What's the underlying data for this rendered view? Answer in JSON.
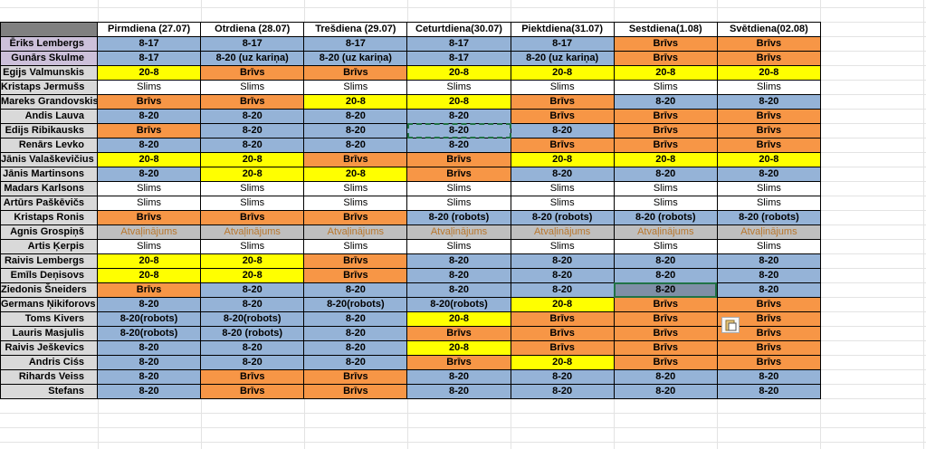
{
  "table": {
    "header": [
      "Pirmdiena (27.07)",
      "Otrdiena (28.07)",
      "Trešdiena (29.07)",
      "Ceturtdiena(30.07)",
      "Piektdiena(31.07)",
      "Sestdiena(1.08)",
      "Svētdiena(02.08)"
    ],
    "rows": [
      {
        "name": "Ēriks Lembergs",
        "name_fill": "#ccc0da",
        "cells": [
          "8-17",
          "8-17",
          "8-17",
          "8-17",
          "8-17",
          "Brīvs",
          "Brīvs"
        ],
        "fills": [
          "#95b3d7",
          "#95b3d7",
          "#95b3d7",
          "#95b3d7",
          "#95b3d7",
          "#f79646",
          "#f79646"
        ]
      },
      {
        "name": "Gunārs Skulme",
        "name_fill": "#ccc0da",
        "cells": [
          "8-17",
          "8-20 (uz kariņa)",
          "8-20 (uz kariņa)",
          "8-17",
          "8-20 (uz kariņa)",
          "Brīvs",
          "Brīvs"
        ],
        "fills": [
          "#95b3d7",
          "#95b3d7",
          "#95b3d7",
          "#95b3d7",
          "#95b3d7",
          "#f79646",
          "#f79646"
        ]
      },
      {
        "name": "Egijs Valmunskis",
        "name_fill": "#d9d9d9",
        "cells": [
          "20-8",
          "Brīvs",
          "Brīvs",
          "20-8",
          "20-8",
          "20-8",
          "20-8"
        ],
        "fills": [
          "#ffff00",
          "#f79646",
          "#f79646",
          "#ffff00",
          "#ffff00",
          "#ffff00",
          "#ffff00"
        ]
      },
      {
        "name": "Kristaps Jermušs",
        "name_fill": "#d9d9d9",
        "cells": [
          "Slims",
          "Slims",
          "Slims",
          "Slims",
          "Slims",
          "Slims",
          "Slims"
        ],
        "fills": [
          "#ffffff",
          "#ffffff",
          "#ffffff",
          "#ffffff",
          "#ffffff",
          "#ffffff",
          "#ffffff"
        ]
      },
      {
        "name": "Mareks Grandovskis",
        "name_fill": "#d9d9d9",
        "cells": [
          "Brīvs",
          "Brīvs",
          "20-8",
          "20-8",
          "Brīvs",
          "8-20",
          "8-20"
        ],
        "fills": [
          "#f79646",
          "#f79646",
          "#ffff00",
          "#ffff00",
          "#f79646",
          "#95b3d7",
          "#95b3d7"
        ]
      },
      {
        "name": "Andis  Lauva",
        "name_fill": "#d9d9d9",
        "cells": [
          "8-20",
          "8-20",
          "8-20",
          "8-20",
          "Brīvs",
          "Brīvs",
          "Brīvs"
        ],
        "fills": [
          "#95b3d7",
          "#95b3d7",
          "#95b3d7",
          "#95b3d7",
          "#f79646",
          "#f79646",
          "#f79646"
        ]
      },
      {
        "name": "Edijs Ribikausks",
        "name_fill": "#d9d9d9",
        "cells": [
          "Brīvs",
          "8-20",
          "8-20",
          "8-20",
          "8-20",
          "Brīvs",
          "Brīvs"
        ],
        "fills": [
          "#f79646",
          "#95b3d7",
          "#95b3d7",
          "#95b3d7",
          "#95b3d7",
          "#f79646",
          "#f79646"
        ]
      },
      {
        "name": "Renārs Levko",
        "name_fill": "#d9d9d9",
        "cells": [
          "8-20",
          "8-20",
          "8-20",
          "8-20",
          "Brīvs",
          "Brīvs",
          "Brīvs"
        ],
        "fills": [
          "#95b3d7",
          "#95b3d7",
          "#95b3d7",
          "#95b3d7",
          "#f79646",
          "#f79646",
          "#f79646"
        ]
      },
      {
        "name": "Jānis Valaškevičius",
        "name_fill": "#d9d9d9",
        "cells": [
          "20-8",
          "20-8",
          "Brīvs",
          "Brīvs",
          "20-8",
          "20-8",
          "20-8"
        ],
        "fills": [
          "#ffff00",
          "#ffff00",
          "#f79646",
          "#f79646",
          "#ffff00",
          "#ffff00",
          "#ffff00"
        ]
      },
      {
        "name": "Jānis Martinsons",
        "name_fill": "#d9d9d9",
        "cells": [
          "8-20",
          "20-8",
          "20-8",
          "Brīvs",
          "8-20",
          "8-20",
          "8-20"
        ],
        "fills": [
          "#95b3d7",
          "#ffff00",
          "#ffff00",
          "#f79646",
          "#95b3d7",
          "#95b3d7",
          "#95b3d7"
        ]
      },
      {
        "name": "Madars Karlsons",
        "name_fill": "#d9d9d9",
        "cells": [
          "Slims",
          "Slims",
          "Slims",
          "Slims",
          "Slims",
          "Slims",
          "Slims"
        ],
        "fills": [
          "#ffffff",
          "#ffffff",
          "#ffffff",
          "#ffffff",
          "#ffffff",
          "#ffffff",
          "#ffffff"
        ]
      },
      {
        "name": "Artūrs Paškēvičs",
        "name_fill": "#d9d9d9",
        "cells": [
          "Slims",
          "Slims",
          "Slims",
          "Slims",
          "Slims",
          "Slims",
          "Slims"
        ],
        "fills": [
          "#ffffff",
          "#ffffff",
          "#ffffff",
          "#ffffff",
          "#ffffff",
          "#ffffff",
          "#ffffff"
        ]
      },
      {
        "name": "Kristaps Ronis",
        "name_fill": "#d9d9d9",
        "cells": [
          "Brīvs",
          "Brīvs",
          "Brīvs",
          "8-20 (robots)",
          "8-20 (robots)",
          "8-20 (robots)",
          "8-20 (robots)"
        ],
        "fills": [
          "#f79646",
          "#f79646",
          "#f79646",
          "#95b3d7",
          "#95b3d7",
          "#95b3d7",
          "#95b3d7"
        ]
      },
      {
        "name": "Agnis Grospiņš",
        "name_fill": "#d9d9d9",
        "cells": [
          "Atvaļinājums",
          "Atvaļinājums",
          "Atvaļinājums",
          "Atvaļinājums",
          "Atvaļinājums",
          "Atvaļinājums",
          "Atvaļinājums"
        ],
        "fills": [
          "#bfbfbf",
          "#bfbfbf",
          "#bfbfbf",
          "#bfbfbf",
          "#bfbfbf",
          "#bfbfbf",
          "#bfbfbf"
        ]
      },
      {
        "name": "Artis Ķerpis",
        "name_fill": "#d9d9d9",
        "cells": [
          "Slims",
          "Slims",
          "Slims",
          "Slims",
          "Slims",
          "Slims",
          "Slims"
        ],
        "fills": [
          "#ffffff",
          "#ffffff",
          "#ffffff",
          "#ffffff",
          "#ffffff",
          "#ffffff",
          "#ffffff"
        ]
      },
      {
        "name": "Raivis Lembergs",
        "name_fill": "#d9d9d9",
        "cells": [
          "20-8",
          "20-8",
          "Brīvs",
          "8-20",
          "8-20",
          "8-20",
          "8-20"
        ],
        "fills": [
          "#ffff00",
          "#ffff00",
          "#f79646",
          "#95b3d7",
          "#95b3d7",
          "#95b3d7",
          "#95b3d7"
        ]
      },
      {
        "name": "Emīls Deņisovs",
        "name_fill": "#d9d9d9",
        "cells": [
          "20-8",
          "20-8",
          "Brīvs",
          "8-20",
          "8-20",
          "8-20",
          "8-20"
        ],
        "fills": [
          "#ffff00",
          "#ffff00",
          "#f79646",
          "#95b3d7",
          "#95b3d7",
          "#95b3d7",
          "#95b3d7"
        ]
      },
      {
        "name": "Ziedonis Šneiders",
        "name_fill": "#d9d9d9",
        "cells": [
          "Brīvs",
          "8-20",
          "8-20",
          "8-20",
          "8-20",
          "8-20",
          "8-20"
        ],
        "fills": [
          "#f79646",
          "#95b3d7",
          "#95b3d7",
          "#95b3d7",
          "#95b3d7",
          "#7f8fa6",
          "#95b3d7"
        ]
      },
      {
        "name": "Germans Ņikiforovs",
        "name_fill": "#d9d9d9",
        "cells": [
          "8-20",
          "8-20",
          "8-20(robots)",
          "8-20(robots)",
          "20-8",
          "Brīvs",
          "Brīvs"
        ],
        "fills": [
          "#95b3d7",
          "#95b3d7",
          "#95b3d7",
          "#95b3d7",
          "#ffff00",
          "#f79646",
          "#f79646"
        ]
      },
      {
        "name": "Toms Kivers",
        "name_fill": "#d9d9d9",
        "cells": [
          "8-20(robots)",
          "8-20(robots)",
          "8-20",
          "20-8",
          "Brīvs",
          "Brīvs",
          "Brīvs"
        ],
        "fills": [
          "#95b3d7",
          "#95b3d7",
          "#95b3d7",
          "#ffff00",
          "#f79646",
          "#f79646",
          "#f79646"
        ]
      },
      {
        "name": "Lauris Masjulis",
        "name_fill": "#d9d9d9",
        "cells": [
          "8-20(robots)",
          "8-20 (robots)",
          "8-20",
          "Brīvs",
          "Brīvs",
          "Brīvs",
          "Brīvs"
        ],
        "fills": [
          "#95b3d7",
          "#95b3d7",
          "#95b3d7",
          "#f79646",
          "#f79646",
          "#f79646",
          "#f79646"
        ]
      },
      {
        "name": "Raivis Ješkevics",
        "name_fill": "#d9d9d9",
        "cells": [
          "8-20",
          "8-20",
          "8-20",
          "20-8",
          "Brīvs",
          "Brīvs",
          "Brīvs"
        ],
        "fills": [
          "#95b3d7",
          "#95b3d7",
          "#95b3d7",
          "#ffff00",
          "#f79646",
          "#f79646",
          "#f79646"
        ]
      },
      {
        "name": "Andris Ciśs",
        "name_fill": "#d9d9d9",
        "cells": [
          "8-20",
          "8-20",
          "8-20",
          "Brīvs",
          "20-8",
          "Brīvs",
          "Brīvs"
        ],
        "fills": [
          "#95b3d7",
          "#95b3d7",
          "#95b3d7",
          "#f79646",
          "#ffff00",
          "#f79646",
          "#f79646"
        ]
      },
      {
        "name": "Rihards Veiss",
        "name_fill": "#d9d9d9",
        "cells": [
          "8-20",
          "Brīvs",
          "Brīvs",
          "8-20",
          "8-20",
          "8-20",
          "8-20"
        ],
        "fills": [
          "#95b3d7",
          "#f79646",
          "#f79646",
          "#95b3d7",
          "#95b3d7",
          "#95b3d7",
          "#95b3d7"
        ]
      },
      {
        "name": "Stefans",
        "name_fill": "#d9d9d9",
        "cells": [
          "8-20",
          "Brīvs",
          "Brīvs",
          "8-20",
          "8-20",
          "8-20",
          "8-20"
        ],
        "fills": [
          "#95b3d7",
          "#f79646",
          "#f79646",
          "#95b3d7",
          "#95b3d7",
          "#95b3d7",
          "#95b3d7"
        ]
      }
    ]
  }
}
